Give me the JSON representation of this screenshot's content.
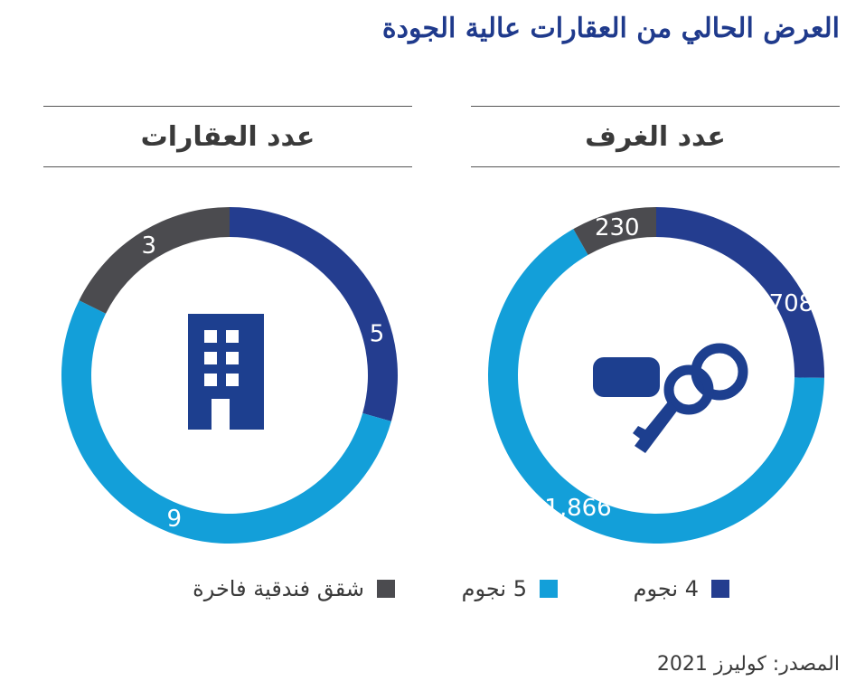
{
  "title": "العرض الحالي من العقارات عالية الجودة",
  "legend": {
    "four_star": "4 نجوم",
    "five_star": "5 نجوم",
    "hotel_apartments": "شقق فندقية فاخرة"
  },
  "colors": {
    "four_star": "#243d8f",
    "five_star": "#139fd9",
    "hotel_apartments": "#4b4b4f",
    "icon": "#1d3f8f"
  },
  "source": "المصدر: كوليرز 2021",
  "chart_data": [
    {
      "type": "pie",
      "title": "عدد الغرف",
      "icon": "key-icon",
      "categories": [
        "4 نجوم",
        "5 نجوم",
        "شقق فندقية فاخرة"
      ],
      "labels": [
        "708",
        "1,866",
        "230"
      ],
      "values": [
        708,
        1866,
        230
      ]
    },
    {
      "type": "pie",
      "title": "عدد العقارات",
      "icon": "building-icon",
      "categories": [
        "4 نجوم",
        "5 نجوم",
        "شقق فندقية فاخرة"
      ],
      "labels": [
        "5",
        "9",
        "3"
      ],
      "values": [
        5,
        9,
        3
      ]
    }
  ]
}
